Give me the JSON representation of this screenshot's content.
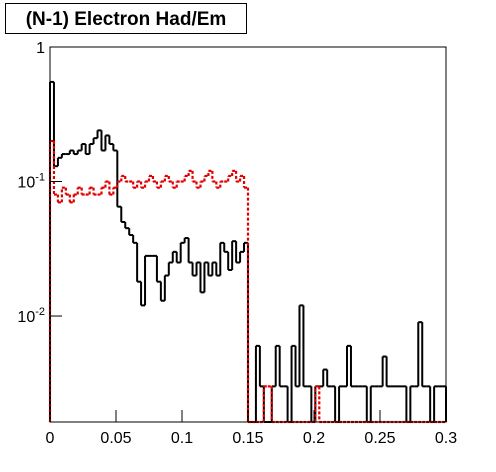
{
  "chart_data": {
    "type": "histogram",
    "title": "(N-1) Electron Had/Em",
    "bins": [
      0,
      0.003,
      0.006,
      0.009,
      0.012,
      0.015,
      0.018,
      0.021,
      0.024,
      0.027,
      0.03,
      0.033,
      0.036,
      0.039,
      0.042,
      0.045,
      0.048,
      0.051,
      0.054,
      0.057,
      0.06,
      0.063,
      0.066,
      0.069,
      0.072,
      0.075,
      0.078,
      0.081,
      0.084,
      0.087,
      0.09,
      0.093,
      0.096,
      0.099,
      0.102,
      0.105,
      0.108,
      0.111,
      0.114,
      0.117,
      0.12,
      0.123,
      0.126,
      0.129,
      0.132,
      0.135,
      0.138,
      0.141,
      0.144,
      0.147,
      0.15,
      0.153,
      0.156,
      0.159,
      0.162,
      0.165,
      0.168,
      0.171,
      0.174,
      0.177,
      0.18,
      0.183,
      0.186,
      0.189,
      0.192,
      0.195,
      0.198,
      0.201,
      0.204,
      0.207,
      0.21,
      0.213,
      0.216,
      0.219,
      0.222,
      0.225,
      0.228,
      0.231,
      0.234,
      0.237,
      0.24,
      0.243,
      0.246,
      0.249,
      0.252,
      0.255,
      0.258,
      0.261,
      0.264,
      0.267,
      0.27,
      0.273,
      0.276,
      0.279,
      0.282,
      0.285,
      0.288,
      0.291,
      0.294,
      0.297,
      0.3
    ],
    "series": [
      {
        "color": "#000000",
        "line_style": "solid",
        "values": [
          0.55,
          0.13,
          0.15,
          0.16,
          0.16,
          0.17,
          0.16,
          0.17,
          0.19,
          0.16,
          0.19,
          0.21,
          0.24,
          0.17,
          0.22,
          0.19,
          0.17,
          0.065,
          0.05,
          0.045,
          0.04,
          0.035,
          0.018,
          0.012,
          0.028,
          0.028,
          0.028,
          0.018,
          0.013,
          0.02,
          0.025,
          0.03,
          0.025,
          0.035,
          0.038,
          0.025,
          0.02,
          0.025,
          0.015,
          0.025,
          0.02,
          0.025,
          0.02,
          0.035,
          0.03,
          0.022,
          0.036,
          0.025,
          0.03,
          0.035,
          0,
          0,
          0.006,
          0.003,
          0,
          0,
          0.003,
          0.006,
          0.003,
          0.003,
          0,
          0.006,
          0.003,
          0.012,
          0.003,
          0.003,
          0,
          0.003,
          0.003,
          0.004,
          0.003,
          0.003,
          0,
          0.003,
          0.003,
          0.006,
          0.003,
          0.003,
          0.003,
          0.003,
          0,
          0.003,
          0.003,
          0.003,
          0.005,
          0.003,
          0.003,
          0.003,
          0.003,
          0.003,
          0,
          0.003,
          0.003,
          0.009,
          0.003,
          0.003,
          0,
          0.003,
          0.003,
          0.003
        ]
      },
      {
        "color": "#e00000",
        "line_style": "dotted",
        "values": [
          0.2,
          0.08,
          0.07,
          0.09,
          0.08,
          0.07,
          0.08,
          0.09,
          0.08,
          0.08,
          0.09,
          0.08,
          0.08,
          0.09,
          0.1,
          0.08,
          0.09,
          0.1,
          0.11,
          0.1,
          0.1,
          0.09,
          0.1,
          0.09,
          0.1,
          0.11,
          0.1,
          0.09,
          0.1,
          0.11,
          0.1,
          0.09,
          0.1,
          0.1,
          0.11,
          0.12,
          0.1,
          0.09,
          0.1,
          0.11,
          0.12,
          0.1,
          0.09,
          0.1,
          0.1,
          0.11,
          0.12,
          0.1,
          0.11,
          0.09,
          0,
          0,
          0,
          0,
          0.003,
          0.003,
          0,
          0,
          0,
          0,
          0,
          0,
          0,
          0,
          0,
          0,
          0,
          0.003,
          0,
          0,
          0,
          0,
          0,
          0,
          0,
          0,
          0,
          0,
          0,
          0,
          0,
          0,
          0,
          0,
          0,
          0,
          0,
          0,
          0,
          0,
          0,
          0,
          0,
          0,
          0,
          0,
          0,
          0,
          0,
          0
        ]
      }
    ],
    "xlim": [
      0,
      0.3
    ],
    "xticks": [
      0,
      0.05,
      0.1,
      0.15,
      0.2,
      0.25,
      0.3
    ],
    "ylim": [
      0.00163,
      1
    ],
    "yticks": [
      1,
      {
        "value": 0.1,
        "label": "10^-1"
      },
      {
        "value": 0.01,
        "label": "10^-2"
      }
    ],
    "log_y": true
  }
}
